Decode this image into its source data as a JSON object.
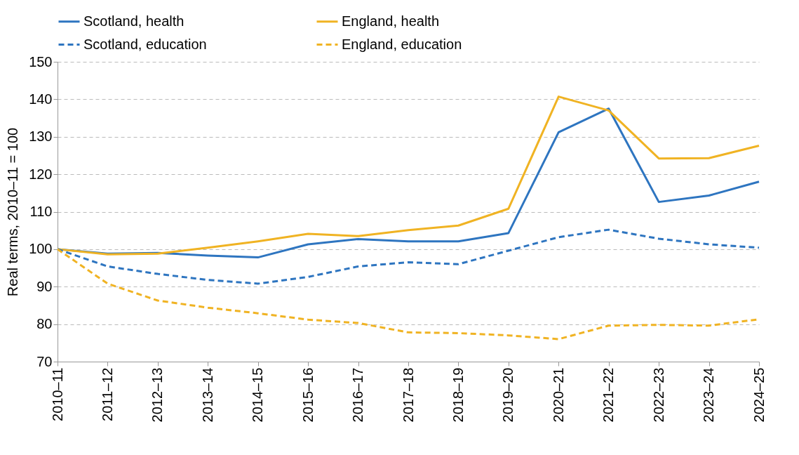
{
  "chart_data": {
    "type": "line",
    "ylabel": "Real terms, 2010–11 = 100",
    "categories": [
      "2010–11",
      "2011–12",
      "2012–13",
      "2013–14",
      "2014–15",
      "2015–16",
      "2016–17",
      "2017–18",
      "2018–19",
      "2019–20",
      "2020–21",
      "2021–22",
      "2022–23",
      "2023–24",
      "2024–25"
    ],
    "series": [
      {
        "name": "Scotland, health",
        "color": "#2e75c0",
        "line_style": "solid",
        "values": [
          100,
          98.8,
          99.0,
          98.3,
          97.8,
          101.3,
          102.7,
          102.1,
          102.1,
          104.3,
          131.2,
          137.5,
          112.6,
          114.3,
          118.0
        ]
      },
      {
        "name": "England, health",
        "color": "#f0b323",
        "line_style": "solid",
        "values": [
          100,
          98.6,
          98.8,
          100.4,
          102.1,
          104.1,
          103.5,
          105.1,
          106.3,
          110.8,
          140.7,
          137.0,
          124.2,
          124.3,
          127.6
        ]
      },
      {
        "name": "Scotland, education",
        "color": "#2e75c0",
        "line_style": "dashed",
        "values": [
          100,
          95.4,
          93.4,
          91.8,
          90.8,
          92.6,
          95.4,
          96.5,
          96.0,
          99.6,
          103.2,
          105.2,
          102.8,
          101.3,
          100.4
        ]
      },
      {
        "name": "England, education",
        "color": "#f0b323",
        "line_style": "dashed",
        "values": [
          100,
          90.8,
          86.3,
          84.4,
          82.9,
          81.2,
          80.3,
          77.8,
          77.6,
          77.0,
          76.0,
          79.6,
          79.8,
          79.6,
          81.3
        ]
      }
    ],
    "ylim": [
      70,
      150
    ],
    "yticks": [
      70,
      80,
      90,
      100,
      110,
      120,
      130,
      140,
      150
    ],
    "grid": "y",
    "legend": "top"
  }
}
